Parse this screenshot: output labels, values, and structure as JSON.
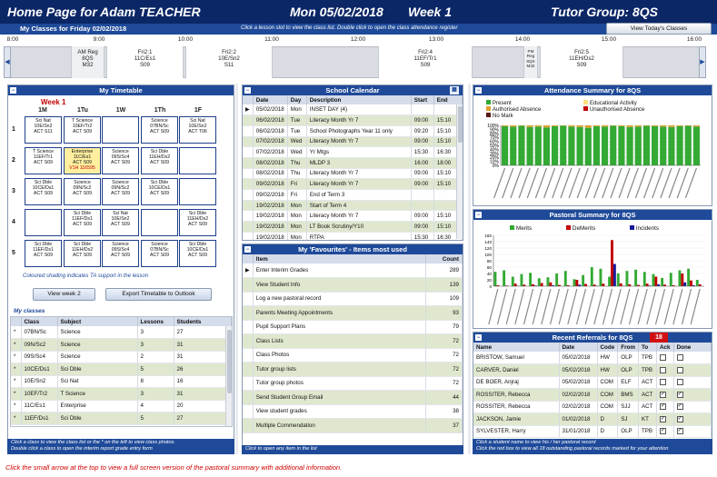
{
  "header": {
    "title": "Home Page for Adam TEACHER",
    "date": "Mon 05/02/2018",
    "week": "Week 1",
    "tutor_group": "Tutor Group: 8QS"
  },
  "classes_bar": {
    "title": "My Classes for Friday 02/02/2018",
    "hint": "Click a lesson slot to view the class list. Double click to open the class attendance register",
    "today_button": "View Today's Classes"
  },
  "timeline": {
    "ticks": [
      "8:00",
      "9:00",
      "10:00",
      "11:00",
      "12:00",
      "13:00",
      "14:00",
      "15:00",
      "16:00"
    ],
    "slots": [
      {
        "line1": "AM Reg",
        "line2": "8QS",
        "line3": "M32"
      },
      {
        "line1": "Fri2:1",
        "line2": "11C/Es1",
        "line3": "S09"
      },
      {
        "line1": "Fri2:2",
        "line2": "10E/Sn2",
        "line3": "S11"
      },
      {
        "line1": "Fri2:4",
        "line2": "11EF/Tr1",
        "line3": "S09"
      },
      {
        "line1": "PM Reg",
        "line2": "8QS",
        "line3": "M32"
      },
      {
        "line1": "Fri2:5",
        "line2": "11EH/Ds2",
        "line3": "S09"
      }
    ]
  },
  "timetable": {
    "title": "My Timetable",
    "week_label": "Week 1",
    "days": [
      "1M",
      "1Tu",
      "1W",
      "1Th",
      "1F"
    ],
    "periods": [
      "1",
      "2",
      "3",
      "4",
      "5"
    ],
    "cells": [
      [
        [
          "Sci Nat",
          "10E/Sn2",
          "ACT   S11"
        ],
        [
          "T Science",
          "10EF/Tr2",
          "ACT   S09"
        ],
        [
          "",
          "",
          ""
        ],
        [
          "Science",
          "07BN/Sc",
          "ACT   S09"
        ],
        [
          "Sci Nat",
          "10E/Sn2",
          "ACT   T06"
        ]
      ],
      [
        [
          "T Science",
          "11EF/Tr1",
          "ACT   S09"
        ],
        [
          "Enterprise",
          "11C/Es1",
          "ACT   S09",
          "V1H   116595"
        ],
        [
          "Science",
          "09S/Sc4",
          "ACT   S09"
        ],
        [
          "Sci Dble",
          "11EH/Ds2",
          "ACT   S09"
        ],
        [
          "",
          "",
          ""
        ]
      ],
      [
        [
          "Sci Dble",
          "10CE/Ds1",
          "ACT   S09"
        ],
        [
          "Science",
          "09N/Sc2",
          "ACT   S09"
        ],
        [
          "Science",
          "09N/Sc2",
          "ACT   S09"
        ],
        [
          "Sci Dble",
          "10CE/Ds1",
          "ACT   S09"
        ],
        [
          "",
          "",
          ""
        ]
      ],
      [
        [
          "",
          "",
          ""
        ],
        [
          "Sci Dble",
          "11EF/Ds1",
          "ACT   S09"
        ],
        [
          "Sci Nat",
          "10E/Sn2",
          "ACT   S09"
        ],
        [
          "",
          "",
          ""
        ],
        [
          "Sci Dble",
          "11EH/Ds2",
          "ACT   S09"
        ]
      ],
      [
        [
          "Sci Dble",
          "11EF/Ds1",
          "ACT   S09"
        ],
        [
          "Sci Dble",
          "11EH/Ds2",
          "ACT   S09"
        ],
        [
          "Science",
          "09S/Sc4",
          "ACT   S09"
        ],
        [
          "Science",
          "07BN/Sc",
          "ACT   S09"
        ],
        [
          "Sci Dble",
          "10CE/Ds1",
          "ACT   S09"
        ]
      ]
    ],
    "note": "Coloured shading indicates TA support in the lesson",
    "view_week_button": "View week 2",
    "export_button": "Export Timetable to Outlook"
  },
  "my_classes": {
    "title": "My classes",
    "columns": [
      "Class",
      "Subject",
      "Lessons",
      "Students"
    ],
    "rows": [
      [
        "07BN/Sc",
        "Science",
        "3",
        "27"
      ],
      [
        "09N/Sc2",
        "Science",
        "3",
        "31"
      ],
      [
        "09S/Sc4",
        "Science",
        "2",
        "31"
      ],
      [
        "10CE/Ds1",
        "Sci Dble",
        "5",
        "26"
      ],
      [
        "10E/Sn2",
        "Sci Nat",
        "8",
        "16"
      ],
      [
        "10EF/Tr2",
        "T Science",
        "3",
        "31"
      ],
      [
        "11C/Es1",
        "Enterprise",
        "4",
        "20"
      ],
      [
        "11EF/Ds1",
        "Sci Dble",
        "5",
        "27"
      ]
    ],
    "footer1": "Click a class to view the class list or the * on the left to view class photos.",
    "footer2": "Double click a class to open the interim report grade entry form"
  },
  "calendar": {
    "title": "School Calendar",
    "columns": [
      "Date",
      "Day",
      "Description",
      "Start",
      "End"
    ],
    "rows": [
      [
        "05/02/2018",
        "Mon",
        "INSET DAY (4)",
        "",
        ""
      ],
      [
        "06/02/2018",
        "Tue",
        "Literacy Month Yr 7",
        "09:00",
        "15:10"
      ],
      [
        "06/02/2018",
        "Tue",
        "School Photographs Year 11 only",
        "09:20",
        "15:10"
      ],
      [
        "07/02/2018",
        "Wed",
        "Literacy Month Yr 7",
        "09:00",
        "15:10"
      ],
      [
        "07/02/2018",
        "Wed",
        "Yr Mtgs",
        "15:30",
        "16:30"
      ],
      [
        "08/02/2018",
        "Thu",
        "MLDP 3",
        "16:00",
        "18:00"
      ],
      [
        "08/02/2018",
        "Thu",
        "Literacy Month Yr 7",
        "09:00",
        "15:10"
      ],
      [
        "09/02/2018",
        "Fri",
        "Literacy Month Yr 7",
        "09:00",
        "15:10"
      ],
      [
        "09/02/2018",
        "Fri",
        "End of Term 3",
        "",
        ""
      ],
      [
        "19/02/2018",
        "Mon",
        "Start of Term 4",
        "",
        ""
      ],
      [
        "19/02/2018",
        "Mon",
        "Literacy Month Yr 7",
        "09:00",
        "15:10"
      ],
      [
        "19/02/2018",
        "Mon",
        "LT Book Scrutiny/Y10",
        "09:00",
        "15:10"
      ],
      [
        "19/02/2018",
        "Mon",
        "RTPA",
        "15:30",
        "16:30"
      ]
    ]
  },
  "favourites": {
    "title": "My 'Favourites' - Items most used",
    "columns": [
      "Item",
      "Count"
    ],
    "rows": [
      [
        "Enter Interim Grades",
        "289"
      ],
      [
        "View Student Info",
        "139"
      ],
      [
        "Log a new pastoral record",
        "109"
      ],
      [
        "Parents Meeting Appointments",
        "93"
      ],
      [
        "Pupil Support Plans",
        "79"
      ],
      [
        "Class Lists",
        "72"
      ],
      [
        "Class Photos",
        "72"
      ],
      [
        "Tutor group lists",
        "72"
      ],
      [
        "Tutor group photos",
        "72"
      ],
      [
        "Send Student Group Email",
        "44"
      ],
      [
        "View student grades",
        "38"
      ],
      [
        "Multiple Commendation",
        "37"
      ]
    ],
    "footer": "Click to open any item in the list"
  },
  "attendance": {
    "title": "Attendance Summary for 8QS",
    "legend": [
      "Present",
      "Educational Activity",
      "Authorised Absence",
      "Unauthorised Absence",
      "No Mark"
    ],
    "colors": {
      "present": "#33aa33",
      "edu": "#ffe080",
      "auth": "#e0a030",
      "unauth": "#c00000",
      "nomark": "#5a1a1a"
    }
  },
  "chart_data": [
    {
      "type": "bar",
      "title": "Attendance Summary for 8QS",
      "series": [
        {
          "name": "Present",
          "values": [
            98,
            97,
            99,
            96,
            97,
            95,
            98,
            99,
            97,
            96,
            94,
            98,
            97,
            99,
            98,
            96,
            97,
            99,
            98,
            97,
            96,
            98,
            99,
            97
          ]
        }
      ],
      "ylim": [
        0,
        100
      ],
      "yticks": [
        "0%",
        "10%",
        "20%",
        "30%",
        "40%",
        "50%",
        "60%",
        "70%",
        "80%",
        "90%",
        "100%"
      ]
    },
    {
      "type": "bar",
      "title": "Pastoral Summary for 8QS",
      "series": [
        {
          "name": "Merits",
          "values": [
            45,
            50,
            30,
            38,
            42,
            25,
            28,
            40,
            48,
            22,
            35,
            60,
            55,
            30,
            40,
            48,
            52,
            45,
            38,
            26,
            42,
            50,
            55,
            20
          ]
        },
        {
          "name": "DeMerits",
          "values": [
            3,
            2,
            8,
            5,
            6,
            10,
            12,
            4,
            3,
            20,
            7,
            5,
            8,
            145,
            9,
            6,
            4,
            8,
            30,
            5,
            3,
            40,
            18,
            6
          ]
        },
        {
          "name": "Incidents",
          "values": [
            0,
            0,
            1,
            0,
            2,
            0,
            3,
            0,
            0,
            5,
            0,
            1,
            0,
            70,
            1,
            0,
            0,
            2,
            6,
            0,
            0,
            12,
            3,
            0
          ]
        }
      ],
      "ylim": [
        0,
        160
      ],
      "yticks": [
        "0",
        "20",
        "40",
        "60",
        "80",
        "100",
        "120",
        "140",
        "160"
      ]
    }
  ],
  "pastoral": {
    "title": "Pastoral Summary for 8QS",
    "legend": [
      "Merits",
      "DeMerits",
      "Incidents"
    ],
    "colors": {
      "merits": "#33aa33",
      "demerits": "#c00000",
      "incidents": "#1a1a99"
    }
  },
  "referrals": {
    "title": "Recent Referrals for 8QS",
    "badge": "18",
    "columns": [
      "Name",
      "Date",
      "Code",
      "From",
      "To",
      "Ack",
      "Done"
    ],
    "rows": [
      [
        "BRISTOW, Samuel",
        "05/02/2018",
        "HW",
        "OLP",
        "TPB",
        "",
        ""
      ],
      [
        "CARVER, Daniel",
        "05/02/2018",
        "HW",
        "OLP",
        "TPB",
        "",
        ""
      ],
      [
        "DE BOER, Anjraj",
        "05/02/2018",
        "COM",
        "ELF",
        "ACT",
        "",
        ""
      ],
      [
        "ROSSITER, Rebecca",
        "02/02/2018",
        "COM",
        "BMS",
        "ACT",
        "✓",
        "✓"
      ],
      [
        "ROSSITER, Rebecca",
        "02/02/2018",
        "COM",
        "SJJ",
        "ACT",
        "✓",
        "✓"
      ],
      [
        "JACKSON, Jamie",
        "01/02/2018",
        "D",
        "SJ",
        "KT",
        "✓",
        "✓"
      ],
      [
        "SYLVESTER, Harry",
        "31/01/2018",
        "D",
        "OLP",
        "TPB",
        "✓",
        "✓"
      ]
    ],
    "footer1": "Click a student name to view his / her pastoral record",
    "footer2": "Click the red box to view all 18 outstanding pastoral records marked for your attention"
  },
  "bottom_note": "Click the small arrow at the top to view a full screen version of the pastoral summary with additional information."
}
